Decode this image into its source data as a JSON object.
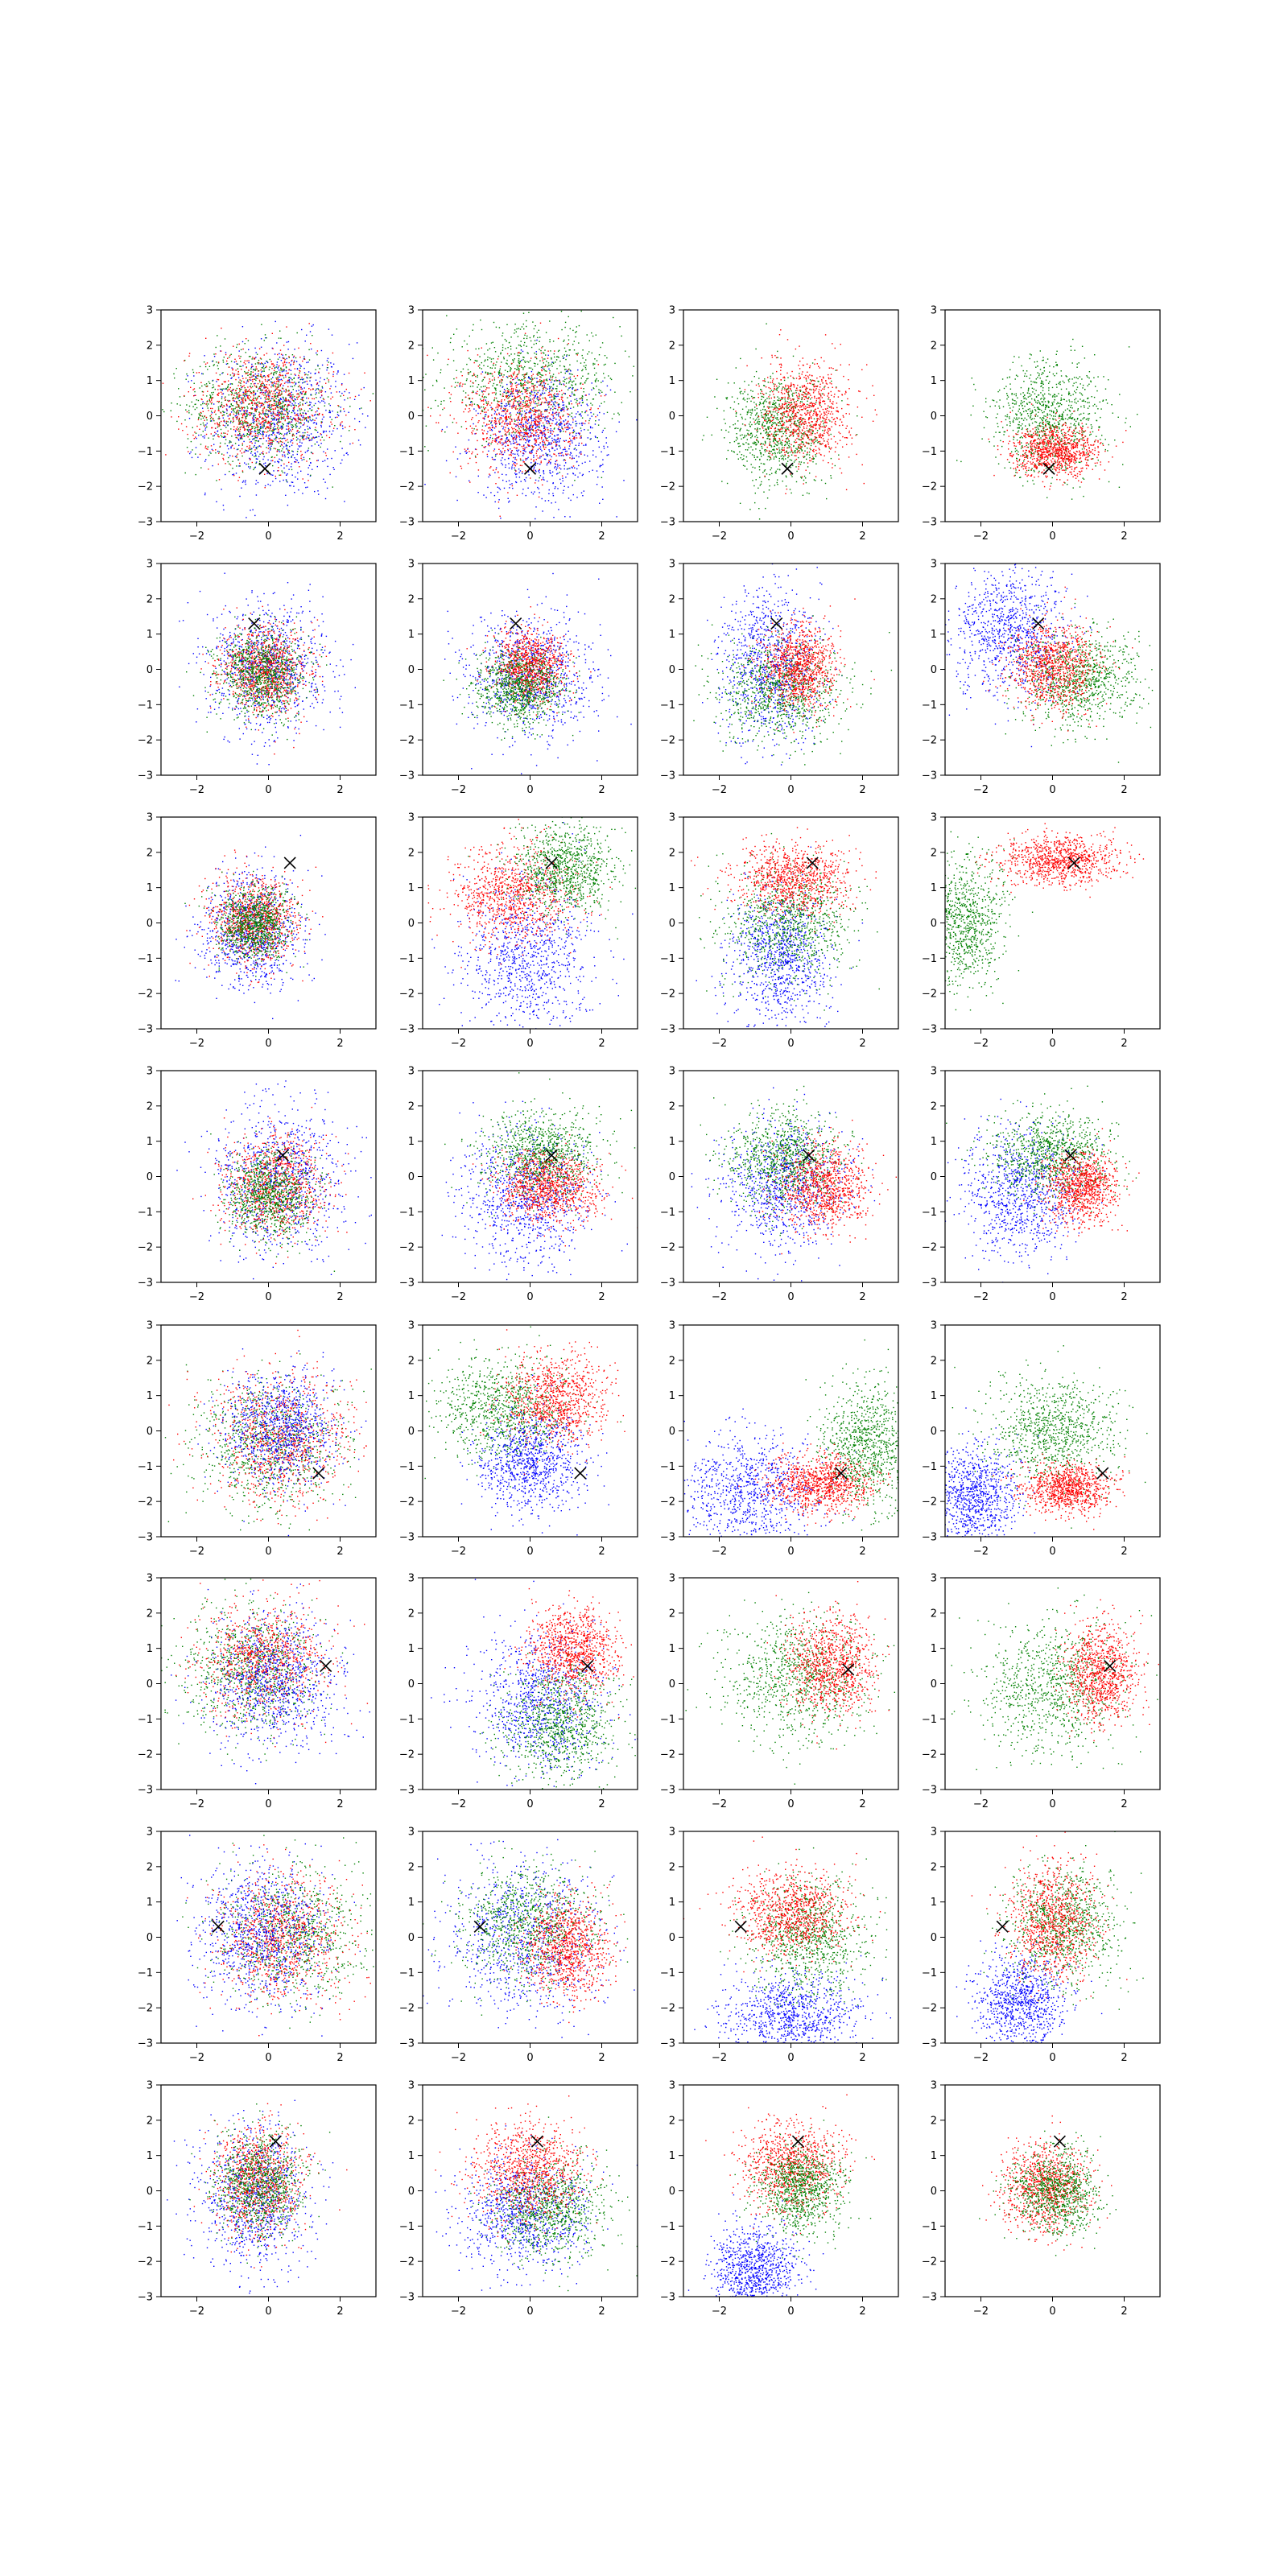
{
  "figure": {
    "rows": 8,
    "cols": 4,
    "xlim": [
      -3,
      3
    ],
    "ylim": [
      -3,
      3
    ],
    "xticks": [
      -2,
      0,
      2
    ],
    "yticks": [
      -3,
      -2,
      -1,
      0,
      1,
      2,
      3
    ],
    "xtick_labels": [
      "−2",
      "0",
      "2"
    ],
    "ytick_labels": [
      "−3",
      "−2",
      "−1",
      "0",
      "1",
      "2",
      "3"
    ],
    "grid": false,
    "colors": {
      "red": "#ff0000",
      "green": "#008000",
      "blue": "#0000ff",
      "marker": "#000000"
    },
    "marker_symbol": "x",
    "points_per_cloud": 900
  },
  "chart_data": [
    {
      "type": "scatter",
      "row": 0,
      "col": 0,
      "marker": [
        -0.1,
        -1.5
      ],
      "clouds": [
        {
          "color": "blue",
          "cx": 0.3,
          "cy": -0.1,
          "sx": 1.0,
          "sy": 1.1
        },
        {
          "color": "green",
          "cx": -0.3,
          "cy": 0.3,
          "sx": 1.0,
          "sy": 0.8
        },
        {
          "color": "red",
          "cx": -0.2,
          "cy": 0.3,
          "sx": 1.0,
          "sy": 0.8
        }
      ]
    },
    {
      "type": "scatter",
      "row": 0,
      "col": 1,
      "marker": [
        0.0,
        -1.5
      ],
      "clouds": [
        {
          "color": "green",
          "cx": 0.0,
          "cy": 1.0,
          "sx": 1.2,
          "sy": 0.8
        },
        {
          "color": "blue",
          "cx": 0.3,
          "cy": -0.6,
          "sx": 0.9,
          "sy": 0.9
        },
        {
          "color": "red",
          "cx": -0.3,
          "cy": 0.0,
          "sx": 0.8,
          "sy": 0.8
        }
      ]
    },
    {
      "type": "scatter",
      "row": 0,
      "col": 2,
      "marker": [
        -0.1,
        -1.5
      ],
      "clouds": [
        {
          "color": "green",
          "cx": -0.4,
          "cy": -0.4,
          "sx": 0.7,
          "sy": 0.8
        },
        {
          "color": "red",
          "cx": 0.4,
          "cy": 0.1,
          "sx": 0.6,
          "sy": 0.7
        }
      ]
    },
    {
      "type": "scatter",
      "row": 0,
      "col": 3,
      "marker": [
        -0.1,
        -1.5
      ],
      "clouds": [
        {
          "color": "green",
          "cx": -0.1,
          "cy": 0.0,
          "sx": 0.8,
          "sy": 0.8
        },
        {
          "color": "red",
          "cx": 0.1,
          "cy": -1.0,
          "sx": 0.6,
          "sy": 0.35
        }
      ]
    },
    {
      "type": "scatter",
      "row": 1,
      "col": 0,
      "marker": [
        -0.4,
        1.3
      ],
      "clouds": [
        {
          "color": "blue",
          "cx": 0.0,
          "cy": 0.1,
          "sx": 0.8,
          "sy": 0.9
        },
        {
          "color": "red",
          "cx": -0.1,
          "cy": 0.0,
          "sx": 0.6,
          "sy": 0.6
        },
        {
          "color": "green",
          "cx": -0.2,
          "cy": -0.1,
          "sx": 0.6,
          "sy": 0.6
        }
      ]
    },
    {
      "type": "scatter",
      "row": 1,
      "col": 1,
      "marker": [
        -0.4,
        1.3
      ],
      "clouds": [
        {
          "color": "blue",
          "cx": 0.0,
          "cy": -0.2,
          "sx": 0.9,
          "sy": 0.9
        },
        {
          "color": "red",
          "cx": 0.0,
          "cy": 0.1,
          "sx": 0.5,
          "sy": 0.5
        },
        {
          "color": "green",
          "cx": -0.3,
          "cy": -0.5,
          "sx": 0.6,
          "sy": 0.5
        }
      ]
    },
    {
      "type": "scatter",
      "row": 1,
      "col": 2,
      "marker": [
        -0.4,
        1.3
      ],
      "clouds": [
        {
          "color": "blue",
          "cx": -0.6,
          "cy": 0.2,
          "sx": 0.7,
          "sy": 1.1
        },
        {
          "color": "green",
          "cx": -0.3,
          "cy": -0.6,
          "sx": 0.9,
          "sy": 0.7
        },
        {
          "color": "red",
          "cx": 0.2,
          "cy": 0.1,
          "sx": 0.5,
          "sy": 0.6
        }
      ]
    },
    {
      "type": "scatter",
      "row": 1,
      "col": 3,
      "marker": [
        -0.4,
        1.3
      ],
      "clouds": [
        {
          "color": "blue",
          "cx": -1.2,
          "cy": 1.0,
          "sx": 0.8,
          "sy": 0.9
        },
        {
          "color": "green",
          "cx": 0.7,
          "cy": -0.3,
          "sx": 0.8,
          "sy": 0.7
        },
        {
          "color": "red",
          "cx": 0.0,
          "cy": 0.1,
          "sx": 0.6,
          "sy": 0.6
        }
      ]
    },
    {
      "type": "scatter",
      "row": 2,
      "col": 0,
      "marker": [
        0.6,
        1.7
      ],
      "clouds": [
        {
          "color": "blue",
          "cx": -0.5,
          "cy": -0.2,
          "sx": 0.7,
          "sy": 0.8
        },
        {
          "color": "red",
          "cx": -0.4,
          "cy": 0.1,
          "sx": 0.6,
          "sy": 0.6
        },
        {
          "color": "green",
          "cx": -0.4,
          "cy": 0.0,
          "sx": 0.5,
          "sy": 0.5
        }
      ]
    },
    {
      "type": "scatter",
      "row": 2,
      "col": 1,
      "marker": [
        0.6,
        1.7
      ],
      "clouds": [
        {
          "color": "blue",
          "cx": -0.1,
          "cy": -1.0,
          "sx": 0.9,
          "sy": 1.1
        },
        {
          "color": "red",
          "cx": -0.5,
          "cy": 0.8,
          "sx": 0.8,
          "sy": 0.7
        },
        {
          "color": "green",
          "cx": 1.0,
          "cy": 1.5,
          "sx": 0.7,
          "sy": 0.6
        }
      ]
    },
    {
      "type": "scatter",
      "row": 2,
      "col": 2,
      "marker": [
        0.6,
        1.7
      ],
      "clouds": [
        {
          "color": "blue",
          "cx": -0.3,
          "cy": -1.0,
          "sx": 0.7,
          "sy": 1.0
        },
        {
          "color": "green",
          "cx": -0.1,
          "cy": 0.0,
          "sx": 0.9,
          "sy": 0.8
        },
        {
          "color": "red",
          "cx": 0.1,
          "cy": 1.3,
          "sx": 0.8,
          "sy": 0.5
        }
      ]
    },
    {
      "type": "scatter",
      "row": 2,
      "col": 3,
      "marker": [
        0.6,
        1.7
      ],
      "clouds": [
        {
          "color": "green",
          "cx": -2.5,
          "cy": 0.0,
          "sx": 0.6,
          "sy": 0.9
        },
        {
          "color": "red",
          "cx": 0.2,
          "cy": 1.8,
          "sx": 0.8,
          "sy": 0.35
        }
      ]
    },
    {
      "type": "scatter",
      "row": 3,
      "col": 0,
      "marker": [
        0.4,
        0.6
      ],
      "clouds": [
        {
          "color": "blue",
          "cx": 0.3,
          "cy": 0.0,
          "sx": 0.9,
          "sy": 1.0
        },
        {
          "color": "red",
          "cx": 0.2,
          "cy": -0.2,
          "sx": 0.7,
          "sy": 0.7
        },
        {
          "color": "green",
          "cx": 0.0,
          "cy": -0.5,
          "sx": 0.6,
          "sy": 0.6
        }
      ]
    },
    {
      "type": "scatter",
      "row": 3,
      "col": 1,
      "marker": [
        0.6,
        0.6
      ],
      "clouds": [
        {
          "color": "blue",
          "cx": -0.1,
          "cy": -0.6,
          "sx": 0.9,
          "sy": 0.9
        },
        {
          "color": "green",
          "cx": 0.3,
          "cy": 0.6,
          "sx": 0.8,
          "sy": 0.6
        },
        {
          "color": "red",
          "cx": 0.5,
          "cy": -0.3,
          "sx": 0.7,
          "sy": 0.5
        }
      ]
    },
    {
      "type": "scatter",
      "row": 3,
      "col": 2,
      "marker": [
        0.5,
        0.6
      ],
      "clouds": [
        {
          "color": "blue",
          "cx": -0.2,
          "cy": -0.3,
          "sx": 0.9,
          "sy": 0.9
        },
        {
          "color": "green",
          "cx": -0.2,
          "cy": 0.5,
          "sx": 0.8,
          "sy": 0.7
        },
        {
          "color": "red",
          "cx": 0.9,
          "cy": -0.3,
          "sx": 0.6,
          "sy": 0.6
        }
      ]
    },
    {
      "type": "scatter",
      "row": 3,
      "col": 3,
      "marker": [
        0.5,
        0.6
      ],
      "clouds": [
        {
          "color": "blue",
          "cx": -0.9,
          "cy": -0.5,
          "sx": 0.8,
          "sy": 0.9
        },
        {
          "color": "green",
          "cx": 0.0,
          "cy": 0.6,
          "sx": 0.8,
          "sy": 0.6
        },
        {
          "color": "red",
          "cx": 0.8,
          "cy": -0.3,
          "sx": 0.5,
          "sy": 0.5
        }
      ]
    },
    {
      "type": "scatter",
      "row": 4,
      "col": 0,
      "marker": [
        1.4,
        -1.2
      ],
      "clouds": [
        {
          "color": "green",
          "cx": 0.0,
          "cy": -0.4,
          "sx": 1.0,
          "sy": 0.9
        },
        {
          "color": "red",
          "cx": 0.3,
          "cy": -0.2,
          "sx": 1.0,
          "sy": 0.9
        },
        {
          "color": "blue",
          "cx": 0.3,
          "cy": 0.1,
          "sx": 0.8,
          "sy": 0.8
        }
      ]
    },
    {
      "type": "scatter",
      "row": 4,
      "col": 1,
      "marker": [
        1.4,
        -1.2
      ],
      "clouds": [
        {
          "color": "green",
          "cx": -0.8,
          "cy": 0.6,
          "sx": 0.9,
          "sy": 0.7
        },
        {
          "color": "red",
          "cx": 0.7,
          "cy": 0.9,
          "sx": 0.7,
          "sy": 0.6
        },
        {
          "color": "blue",
          "cx": 0.0,
          "cy": -0.9,
          "sx": 0.7,
          "sy": 0.7
        }
      ]
    },
    {
      "type": "scatter",
      "row": 4,
      "col": 2,
      "marker": [
        1.4,
        -1.2
      ],
      "clouds": [
        {
          "color": "blue",
          "cx": -1.2,
          "cy": -1.7,
          "sx": 1.0,
          "sy": 0.8
        },
        {
          "color": "green",
          "cx": 2.1,
          "cy": -0.4,
          "sx": 0.6,
          "sy": 0.9
        },
        {
          "color": "red",
          "cx": 0.8,
          "cy": -1.5,
          "sx": 0.7,
          "sy": 0.4
        }
      ]
    },
    {
      "type": "scatter",
      "row": 4,
      "col": 3,
      "marker": [
        1.4,
        -1.2
      ],
      "clouds": [
        {
          "color": "blue",
          "cx": -2.2,
          "cy": -1.8,
          "sx": 0.6,
          "sy": 0.7
        },
        {
          "color": "green",
          "cx": 0.0,
          "cy": 0.0,
          "sx": 0.9,
          "sy": 0.8
        },
        {
          "color": "red",
          "cx": 0.4,
          "cy": -1.6,
          "sx": 0.6,
          "sy": 0.35
        }
      ]
    },
    {
      "type": "scatter",
      "row": 5,
      "col": 0,
      "marker": [
        1.6,
        0.5
      ],
      "clouds": [
        {
          "color": "green",
          "cx": -0.5,
          "cy": 0.4,
          "sx": 0.9,
          "sy": 0.9
        },
        {
          "color": "red",
          "cx": -0.1,
          "cy": 0.7,
          "sx": 0.9,
          "sy": 0.8
        },
        {
          "color": "blue",
          "cx": 0.1,
          "cy": 0.1,
          "sx": 0.9,
          "sy": 1.0
        }
      ]
    },
    {
      "type": "scatter",
      "row": 5,
      "col": 1,
      "marker": [
        1.6,
        0.5
      ],
      "clouds": [
        {
          "color": "blue",
          "cx": 0.3,
          "cy": -0.5,
          "sx": 0.9,
          "sy": 1.0
        },
        {
          "color": "green",
          "cx": 0.8,
          "cy": -1.1,
          "sx": 0.8,
          "sy": 0.8
        },
        {
          "color": "red",
          "cx": 1.2,
          "cy": 1.0,
          "sx": 0.6,
          "sy": 0.6
        }
      ]
    },
    {
      "type": "scatter",
      "row": 5,
      "col": 2,
      "marker": [
        1.6,
        0.4
      ],
      "clouds": [
        {
          "color": "green",
          "cx": 0.2,
          "cy": 0.2,
          "sx": 1.0,
          "sy": 0.9
        },
        {
          "color": "red",
          "cx": 1.1,
          "cy": 0.5,
          "sx": 0.6,
          "sy": 0.7
        }
      ]
    },
    {
      "type": "scatter",
      "row": 5,
      "col": 3,
      "marker": [
        1.6,
        0.5
      ],
      "clouds": [
        {
          "color": "green",
          "cx": 0.0,
          "cy": -0.1,
          "sx": 1.0,
          "sy": 0.9
        },
        {
          "color": "red",
          "cx": 1.3,
          "cy": 0.3,
          "sx": 0.5,
          "sy": 0.7
        }
      ]
    },
    {
      "type": "scatter",
      "row": 6,
      "col": 0,
      "marker": [
        -1.4,
        0.3
      ],
      "clouds": [
        {
          "color": "green",
          "cx": 0.6,
          "cy": 0.1,
          "sx": 1.0,
          "sy": 0.9
        },
        {
          "color": "red",
          "cx": 0.4,
          "cy": 0.0,
          "sx": 0.9,
          "sy": 0.9
        },
        {
          "color": "blue",
          "cx": -0.2,
          "cy": 0.1,
          "sx": 0.9,
          "sy": 1.0
        }
      ]
    },
    {
      "type": "scatter",
      "row": 6,
      "col": 1,
      "marker": [
        -1.4,
        0.3
      ],
      "clouds": [
        {
          "color": "blue",
          "cx": -0.2,
          "cy": 0.0,
          "sx": 1.1,
          "sy": 1.1
        },
        {
          "color": "green",
          "cx": -0.1,
          "cy": 0.4,
          "sx": 0.9,
          "sy": 0.8
        },
        {
          "color": "red",
          "cx": 1.0,
          "cy": -0.3,
          "sx": 0.6,
          "sy": 0.7
        }
      ]
    },
    {
      "type": "scatter",
      "row": 6,
      "col": 2,
      "marker": [
        -1.4,
        0.3
      ],
      "clouds": [
        {
          "color": "blue",
          "cx": 0.0,
          "cy": -2.2,
          "sx": 0.9,
          "sy": 0.6
        },
        {
          "color": "green",
          "cx": 0.5,
          "cy": 0.0,
          "sx": 0.8,
          "sy": 0.8
        },
        {
          "color": "red",
          "cx": 0.0,
          "cy": 0.7,
          "sx": 0.8,
          "sy": 0.6
        }
      ]
    },
    {
      "type": "scatter",
      "row": 6,
      "col": 3,
      "marker": [
        -1.4,
        0.3
      ],
      "clouds": [
        {
          "color": "blue",
          "cx": -0.9,
          "cy": -1.8,
          "sx": 0.6,
          "sy": 0.7
        },
        {
          "color": "green",
          "cx": 0.3,
          "cy": 0.4,
          "sx": 0.8,
          "sy": 0.8
        },
        {
          "color": "red",
          "cx": 0.0,
          "cy": 0.5,
          "sx": 0.6,
          "sy": 0.8
        }
      ]
    },
    {
      "type": "scatter",
      "row": 7,
      "col": 0,
      "marker": [
        0.2,
        1.4
      ],
      "clouds": [
        {
          "color": "blue",
          "cx": -0.4,
          "cy": -0.2,
          "sx": 0.8,
          "sy": 1.0
        },
        {
          "color": "red",
          "cx": -0.3,
          "cy": 0.3,
          "sx": 0.6,
          "sy": 0.8
        },
        {
          "color": "green",
          "cx": -0.3,
          "cy": 0.2,
          "sx": 0.6,
          "sy": 0.7
        }
      ]
    },
    {
      "type": "scatter",
      "row": 7,
      "col": 1,
      "marker": [
        0.2,
        1.4
      ],
      "clouds": [
        {
          "color": "blue",
          "cx": -0.2,
          "cy": -0.6,
          "sx": 0.9,
          "sy": 0.8
        },
        {
          "color": "green",
          "cx": 0.5,
          "cy": -0.5,
          "sx": 0.8,
          "sy": 0.7
        },
        {
          "color": "red",
          "cx": -0.1,
          "cy": 0.6,
          "sx": 0.8,
          "sy": 0.7
        }
      ]
    },
    {
      "type": "scatter",
      "row": 7,
      "col": 2,
      "marker": [
        0.2,
        1.4
      ],
      "clouds": [
        {
          "color": "blue",
          "cx": -1.0,
          "cy": -2.2,
          "sx": 0.6,
          "sy": 0.6
        },
        {
          "color": "red",
          "cx": 0.0,
          "cy": 0.7,
          "sx": 0.7,
          "sy": 0.6
        },
        {
          "color": "green",
          "cx": 0.3,
          "cy": 0.1,
          "sx": 0.6,
          "sy": 0.6
        }
      ]
    },
    {
      "type": "scatter",
      "row": 7,
      "col": 3,
      "marker": [
        0.2,
        1.4
      ],
      "clouds": [
        {
          "color": "red",
          "cx": -0.2,
          "cy": 0.1,
          "sx": 0.6,
          "sy": 0.6
        },
        {
          "color": "green",
          "cx": 0.1,
          "cy": 0.0,
          "sx": 0.6,
          "sy": 0.6
        }
      ]
    }
  ]
}
